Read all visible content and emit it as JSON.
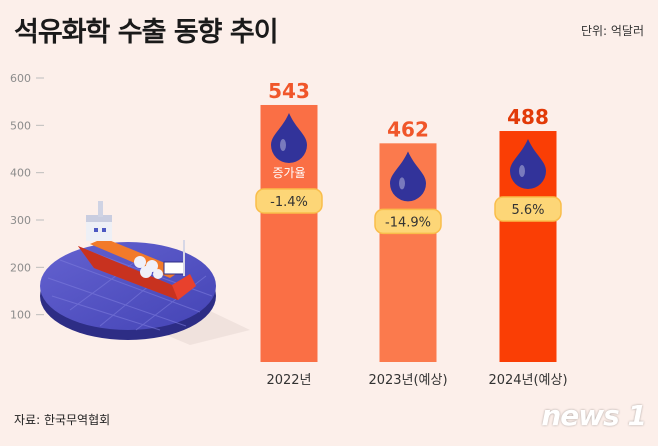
{
  "title": "석유화학 수출 동향 추이",
  "unit": "단위: 억달러",
  "source": "자료: 한국무역협회",
  "logo": "news 1",
  "growth_label": "증가율",
  "colors": {
    "bar1": "#fa6f45",
    "bar2": "#fb7a4d",
    "bar3": "#fa3e05",
    "drop": "#32339a",
    "pill": "#fdd677",
    "pill_border": "#f9bd4a"
  },
  "chart_data": {
    "type": "bar",
    "title": "석유화학 수출 동향 추이",
    "ylabel": "단위: 억달러",
    "ylim": [
      0,
      600
    ],
    "yticks": [
      100,
      200,
      300,
      400,
      500,
      600
    ],
    "categories": [
      "2022년",
      "2023년(예상)",
      "2024년(예상)"
    ],
    "values": [
      543,
      462,
      488
    ],
    "value_labels": [
      "543",
      "462",
      "488"
    ],
    "growth_rates": [
      "-1.4%",
      "-14.9%",
      "5.6%"
    ]
  }
}
